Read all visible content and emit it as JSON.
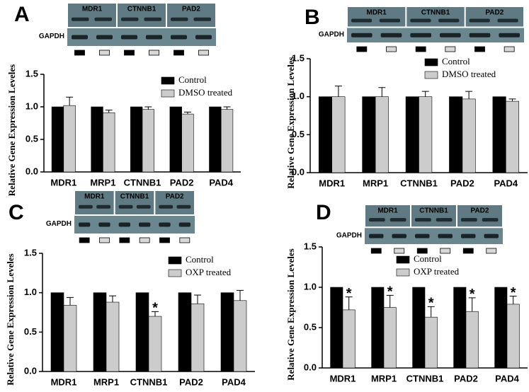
{
  "chart_data": [
    {
      "type": "bar",
      "title": "A",
      "y_label": "Relative Gene Expression Leveles",
      "blot_labels": [
        "MDR1",
        "CTNNB1",
        "PAD2"
      ],
      "blot_control": "GAPDH",
      "categories": [
        "MDR1",
        "MRP1",
        "CTNNB1",
        "PAD2",
        "PAD4"
      ],
      "series": [
        {
          "name": "Control",
          "color": "#000000",
          "values": [
            1.0,
            1.0,
            1.0,
            1.0,
            1.0
          ]
        },
        {
          "name": "DMSO treated",
          "color": "#cccccc",
          "values": [
            1.02,
            0.91,
            0.96,
            0.89,
            0.96
          ],
          "errors": [
            0.13,
            0.04,
            0.04,
            0.03,
            0.04
          ]
        }
      ],
      "ylim": [
        0,
        1.5
      ],
      "yticks": [
        {
          "value": 0,
          "label": "0.0"
        },
        0.5,
        {
          "value": 1,
          "label": "1.0"
        },
        1.5
      ]
    },
    {
      "type": "bar",
      "title": "B",
      "y_label": "Relative Gene Expression Leveles",
      "blot_labels": [
        "MDR1",
        "CTNNB1",
        "PAD2"
      ],
      "blot_control": "GAPDH",
      "categories": [
        "MDR1",
        "MRP1",
        "CTNNB1",
        "PAD2",
        "PAD4"
      ],
      "series": [
        {
          "name": "Control",
          "color": "#000000",
          "values": [
            1.0,
            1.0,
            1.0,
            1.0,
            1.0
          ]
        },
        {
          "name": "DMSO treated",
          "color": "#cccccc",
          "values": [
            1.0,
            1.0,
            1.0,
            0.97,
            0.94
          ],
          "errors": [
            0.14,
            0.12,
            0.07,
            0.1,
            0.03
          ]
        }
      ],
      "ylim": [
        0,
        1.5
      ],
      "yticks": [
        {
          "value": 0,
          "label": "0.0"
        },
        0.5,
        {
          "value": 1,
          "label": "1.0"
        },
        1.5
      ]
    },
    {
      "type": "bar",
      "title": "C",
      "y_label": "Relative Gene Expression Leveles",
      "blot_labels": [
        "MDR1",
        "CTNNB1",
        "PAD2"
      ],
      "blot_control": "GAPDH",
      "categories": [
        "MDR1",
        "MRP1",
        "CTNNB1",
        "PAD2",
        "PAD4"
      ],
      "series": [
        {
          "name": "Control",
          "color": "#000000",
          "values": [
            1.0,
            1.0,
            1.0,
            1.0,
            1.0
          ]
        },
        {
          "name": "OXP treated",
          "color": "#cccccc",
          "values": [
            0.84,
            0.88,
            0.7,
            0.86,
            0.9
          ],
          "errors": [
            0.1,
            0.08,
            0.06,
            0.11,
            0.13
          ]
        }
      ],
      "significance": [
        null,
        null,
        "*",
        null,
        null
      ],
      "ylim": [
        0,
        1.5
      ],
      "yticks": [
        {
          "value": 0,
          "label": "0.0"
        },
        0.5,
        {
          "value": 1,
          "label": "1.0"
        },
        1.5
      ]
    },
    {
      "type": "bar",
      "title": "D",
      "y_label": "Relative Gene Expression Leveles",
      "blot_labels": [
        "MDR1",
        "CTNNB1",
        "PAD2"
      ],
      "blot_control": "GAPDH",
      "categories": [
        "MDR1",
        "MRP1",
        "CTNNB1",
        "PAD2",
        "PAD4"
      ],
      "series": [
        {
          "name": "Control",
          "color": "#000000",
          "values": [
            1.0,
            1.0,
            1.0,
            1.0,
            1.0
          ]
        },
        {
          "name": "OXP treated",
          "color": "#cccccc",
          "values": [
            0.72,
            0.75,
            0.63,
            0.7,
            0.79
          ],
          "errors": [
            0.16,
            0.15,
            0.13,
            0.17,
            0.1
          ]
        }
      ],
      "significance": [
        "*",
        "*",
        "*",
        "*",
        "*"
      ],
      "ylim": [
        0,
        1.5
      ],
      "yticks": [
        {
          "value": 0,
          "label": "0.0"
        },
        0.5,
        {
          "value": 1,
          "label": "1.0"
        },
        1.5
      ]
    }
  ]
}
